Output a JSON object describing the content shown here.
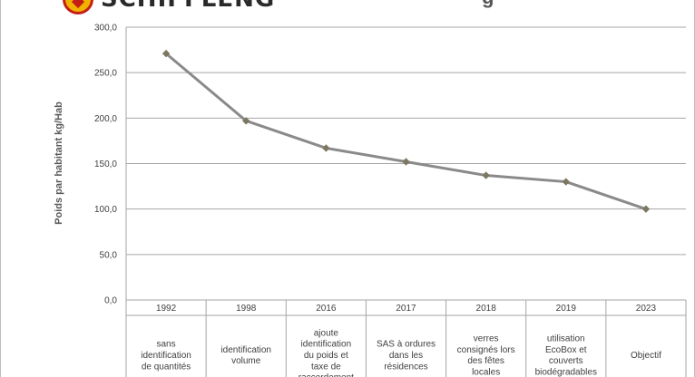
{
  "header": {
    "logo_text": "SCHIFFLENG",
    "title_fragment": "g"
  },
  "chart_data": {
    "type": "line",
    "xlabel": "",
    "ylabel": "Poids par habitant kg/Hab",
    "ylim": [
      0,
      300
    ],
    "yticks": [
      "0,0",
      "50,0",
      "100,0",
      "150,0",
      "200,0",
      "250,0",
      "300,0"
    ],
    "categories": [
      "1992",
      "1998",
      "2016",
      "2017",
      "2018",
      "2019",
      "2023"
    ],
    "descriptions": [
      [
        "sans",
        "identification",
        "de quantités"
      ],
      [
        "identification",
        "volume"
      ],
      [
        "ajoute",
        "identification",
        "du poids et",
        "taxe de",
        "raccordement"
      ],
      [
        "SAS à ordures",
        "dans les",
        "résidences"
      ],
      [
        "verres",
        "consignés lors",
        "des fêtes",
        "locales"
      ],
      [
        "utilisation",
        "EcoBox et",
        "couverts",
        "biodégradables"
      ],
      [
        "Objectif"
      ]
    ],
    "series": [
      {
        "values": [
          271,
          197,
          167,
          152,
          137,
          130,
          100
        ]
      }
    ],
    "grid": true,
    "colors": {
      "line": "#8a8a8a",
      "marker": "#7d7660",
      "grid": "#a6a6a6"
    }
  }
}
